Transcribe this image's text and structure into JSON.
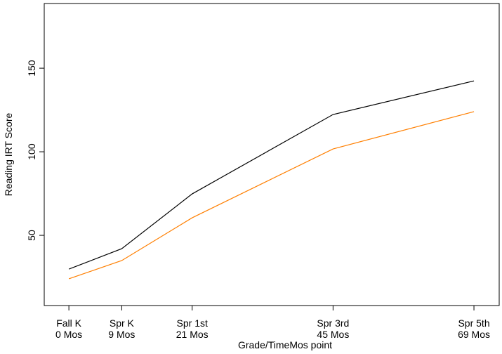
{
  "chart_data": {
    "type": "line",
    "xlabel": "Grade/TimeMos point",
    "ylabel": "Reading IRT Score",
    "x": [
      0,
      9,
      21,
      45,
      69
    ],
    "series": [
      {
        "color": "#000000",
        "values": [
          29.8,
          42.0,
          74.8,
          122.3,
          142.4
        ]
      },
      {
        "color": "#ff7f00",
        "values": [
          24.0,
          34.9,
          60.5,
          101.7,
          124.0
        ]
      }
    ],
    "xlim": [
      -4.2,
      73.3
    ],
    "xticks": [
      {
        "value": 0,
        "label": [
          "Fall K",
          "0 Mos"
        ]
      },
      {
        "value": 9,
        "label": [
          "Spr K",
          "9 Mos"
        ]
      },
      {
        "value": 21,
        "label": [
          "Spr 1st",
          "21 Mos"
        ]
      },
      {
        "value": 45,
        "label": [
          "Spr 3rd",
          "45 Mos"
        ]
      },
      {
        "value": 69,
        "label": [
          "Spr 5th",
          "69 Mos"
        ]
      }
    ],
    "ylim": [
      8,
      188.7
    ],
    "yticks": [
      50,
      100,
      150
    ]
  }
}
